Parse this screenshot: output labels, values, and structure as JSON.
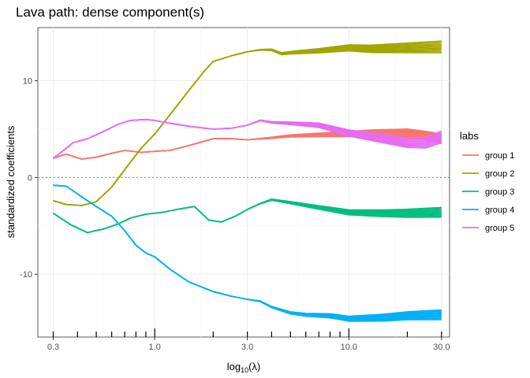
{
  "chart_data": {
    "type": "line",
    "title": "Lava path: dense component(s)",
    "xlabel": "log10(λ)",
    "xlabel_base": "log",
    "xlabel_sub": "10",
    "xlabel_tail": "(λ)",
    "ylabel": "standardized coefficients",
    "x_scale": "log10",
    "xlim": [
      0.25,
      33
    ],
    "ylim": [
      -16.5,
      15.5
    ],
    "x_ticks": [
      0.3,
      1.0,
      3.0,
      10.0,
      30.0
    ],
    "x_tick_labels": [
      "0.3",
      "1.0",
      "3.0",
      "10.0",
      "30.0"
    ],
    "y_ticks": [
      -10,
      0,
      10
    ],
    "y_tick_labels": [
      "-10",
      "0",
      "10"
    ],
    "reference_line_y": 0,
    "rug_x": [
      0.3,
      0.4,
      0.5,
      0.6,
      0.7,
      0.8,
      0.9,
      1,
      2,
      3,
      4,
      5,
      6,
      7,
      8,
      9,
      10,
      20,
      30
    ],
    "legend": {
      "title": "labs",
      "position": "right"
    },
    "series": [
      {
        "name": "group 1",
        "color": "#F8766D",
        "x": [
          0.3,
          0.35,
          0.42,
          0.5,
          0.6,
          0.7,
          0.85,
          1.0,
          1.2,
          1.5,
          2.0,
          2.5,
          3.0,
          4.0,
          5.0,
          7.0,
          10.0,
          13.0,
          16.0,
          20.0,
          25.0,
          30.0
        ],
        "values": [
          2.0,
          2.4,
          1.9,
          2.1,
          2.5,
          2.8,
          2.6,
          2.7,
          2.8,
          3.3,
          4.0,
          4.0,
          3.9,
          4.1,
          4.3,
          4.4,
          4.5,
          4.6,
          4.6,
          4.6,
          4.3,
          4.0
        ],
        "band": 0.5
      },
      {
        "name": "group 2",
        "color": "#A3A500",
        "x": [
          0.3,
          0.35,
          0.42,
          0.5,
          0.6,
          0.7,
          0.85,
          1.0,
          1.2,
          1.5,
          1.8,
          2.0,
          2.5,
          3.0,
          3.5,
          4.0,
          4.5,
          5.0,
          7.0,
          10.0,
          13.0,
          20.0,
          30.0
        ],
        "values": [
          -2.4,
          -2.8,
          -2.9,
          -2.5,
          -1.0,
          0.8,
          3.0,
          4.5,
          6.5,
          9.0,
          11.0,
          12.0,
          12.6,
          13.0,
          13.2,
          13.2,
          12.8,
          12.9,
          13.1,
          13.4,
          13.3,
          13.4,
          13.5
        ],
        "band": 0.6
      },
      {
        "name": "group 3",
        "color": "#00BF7D",
        "x": [
          0.3,
          0.37,
          0.45,
          0.55,
          0.65,
          0.75,
          0.9,
          1.1,
          1.3,
          1.6,
          1.9,
          2.2,
          2.6,
          3.0,
          3.5,
          4.0,
          5.0,
          7.0,
          10.0,
          15.0,
          20.0,
          30.0
        ],
        "values": [
          -3.7,
          -4.9,
          -5.7,
          -5.3,
          -4.8,
          -4.2,
          -3.8,
          -3.6,
          -3.3,
          -3.0,
          -4.4,
          -4.6,
          -4.0,
          -3.3,
          -2.7,
          -2.3,
          -2.6,
          -3.1,
          -3.6,
          -3.7,
          -3.7,
          -3.6
        ],
        "band": 0.5
      },
      {
        "name": "group 4",
        "color": "#00B0F6",
        "x": [
          0.3,
          0.35,
          0.42,
          0.5,
          0.6,
          0.7,
          0.8,
          0.9,
          1.0,
          1.2,
          1.5,
          2.0,
          2.5,
          3.0,
          3.5,
          4.0,
          5.0,
          6.0,
          8.0,
          10.0,
          15.0,
          20.0,
          30.0
        ],
        "values": [
          -0.8,
          -0.9,
          -2.0,
          -3.0,
          -4.0,
          -5.5,
          -7.0,
          -7.8,
          -8.2,
          -9.5,
          -10.8,
          -11.8,
          -12.3,
          -12.6,
          -12.8,
          -13.4,
          -14.0,
          -14.2,
          -14.3,
          -14.6,
          -14.5,
          -14.3,
          -14.2
        ],
        "band": 0.5
      },
      {
        "name": "group 5",
        "color": "#E76BF3",
        "x": [
          0.3,
          0.33,
          0.38,
          0.45,
          0.55,
          0.65,
          0.75,
          0.9,
          1.0,
          1.2,
          1.5,
          2.0,
          2.5,
          3.0,
          3.5,
          4.0,
          5.0,
          7.0,
          10.0,
          15.0,
          20.0,
          25.0,
          30.0
        ],
        "values": [
          2.0,
          2.6,
          3.6,
          4.0,
          4.8,
          5.5,
          5.9,
          6.0,
          5.9,
          5.6,
          5.3,
          5.0,
          5.1,
          5.4,
          5.9,
          5.7,
          5.6,
          5.4,
          4.6,
          4.0,
          3.6,
          3.6,
          4.2
        ],
        "band": 0.6
      }
    ]
  }
}
